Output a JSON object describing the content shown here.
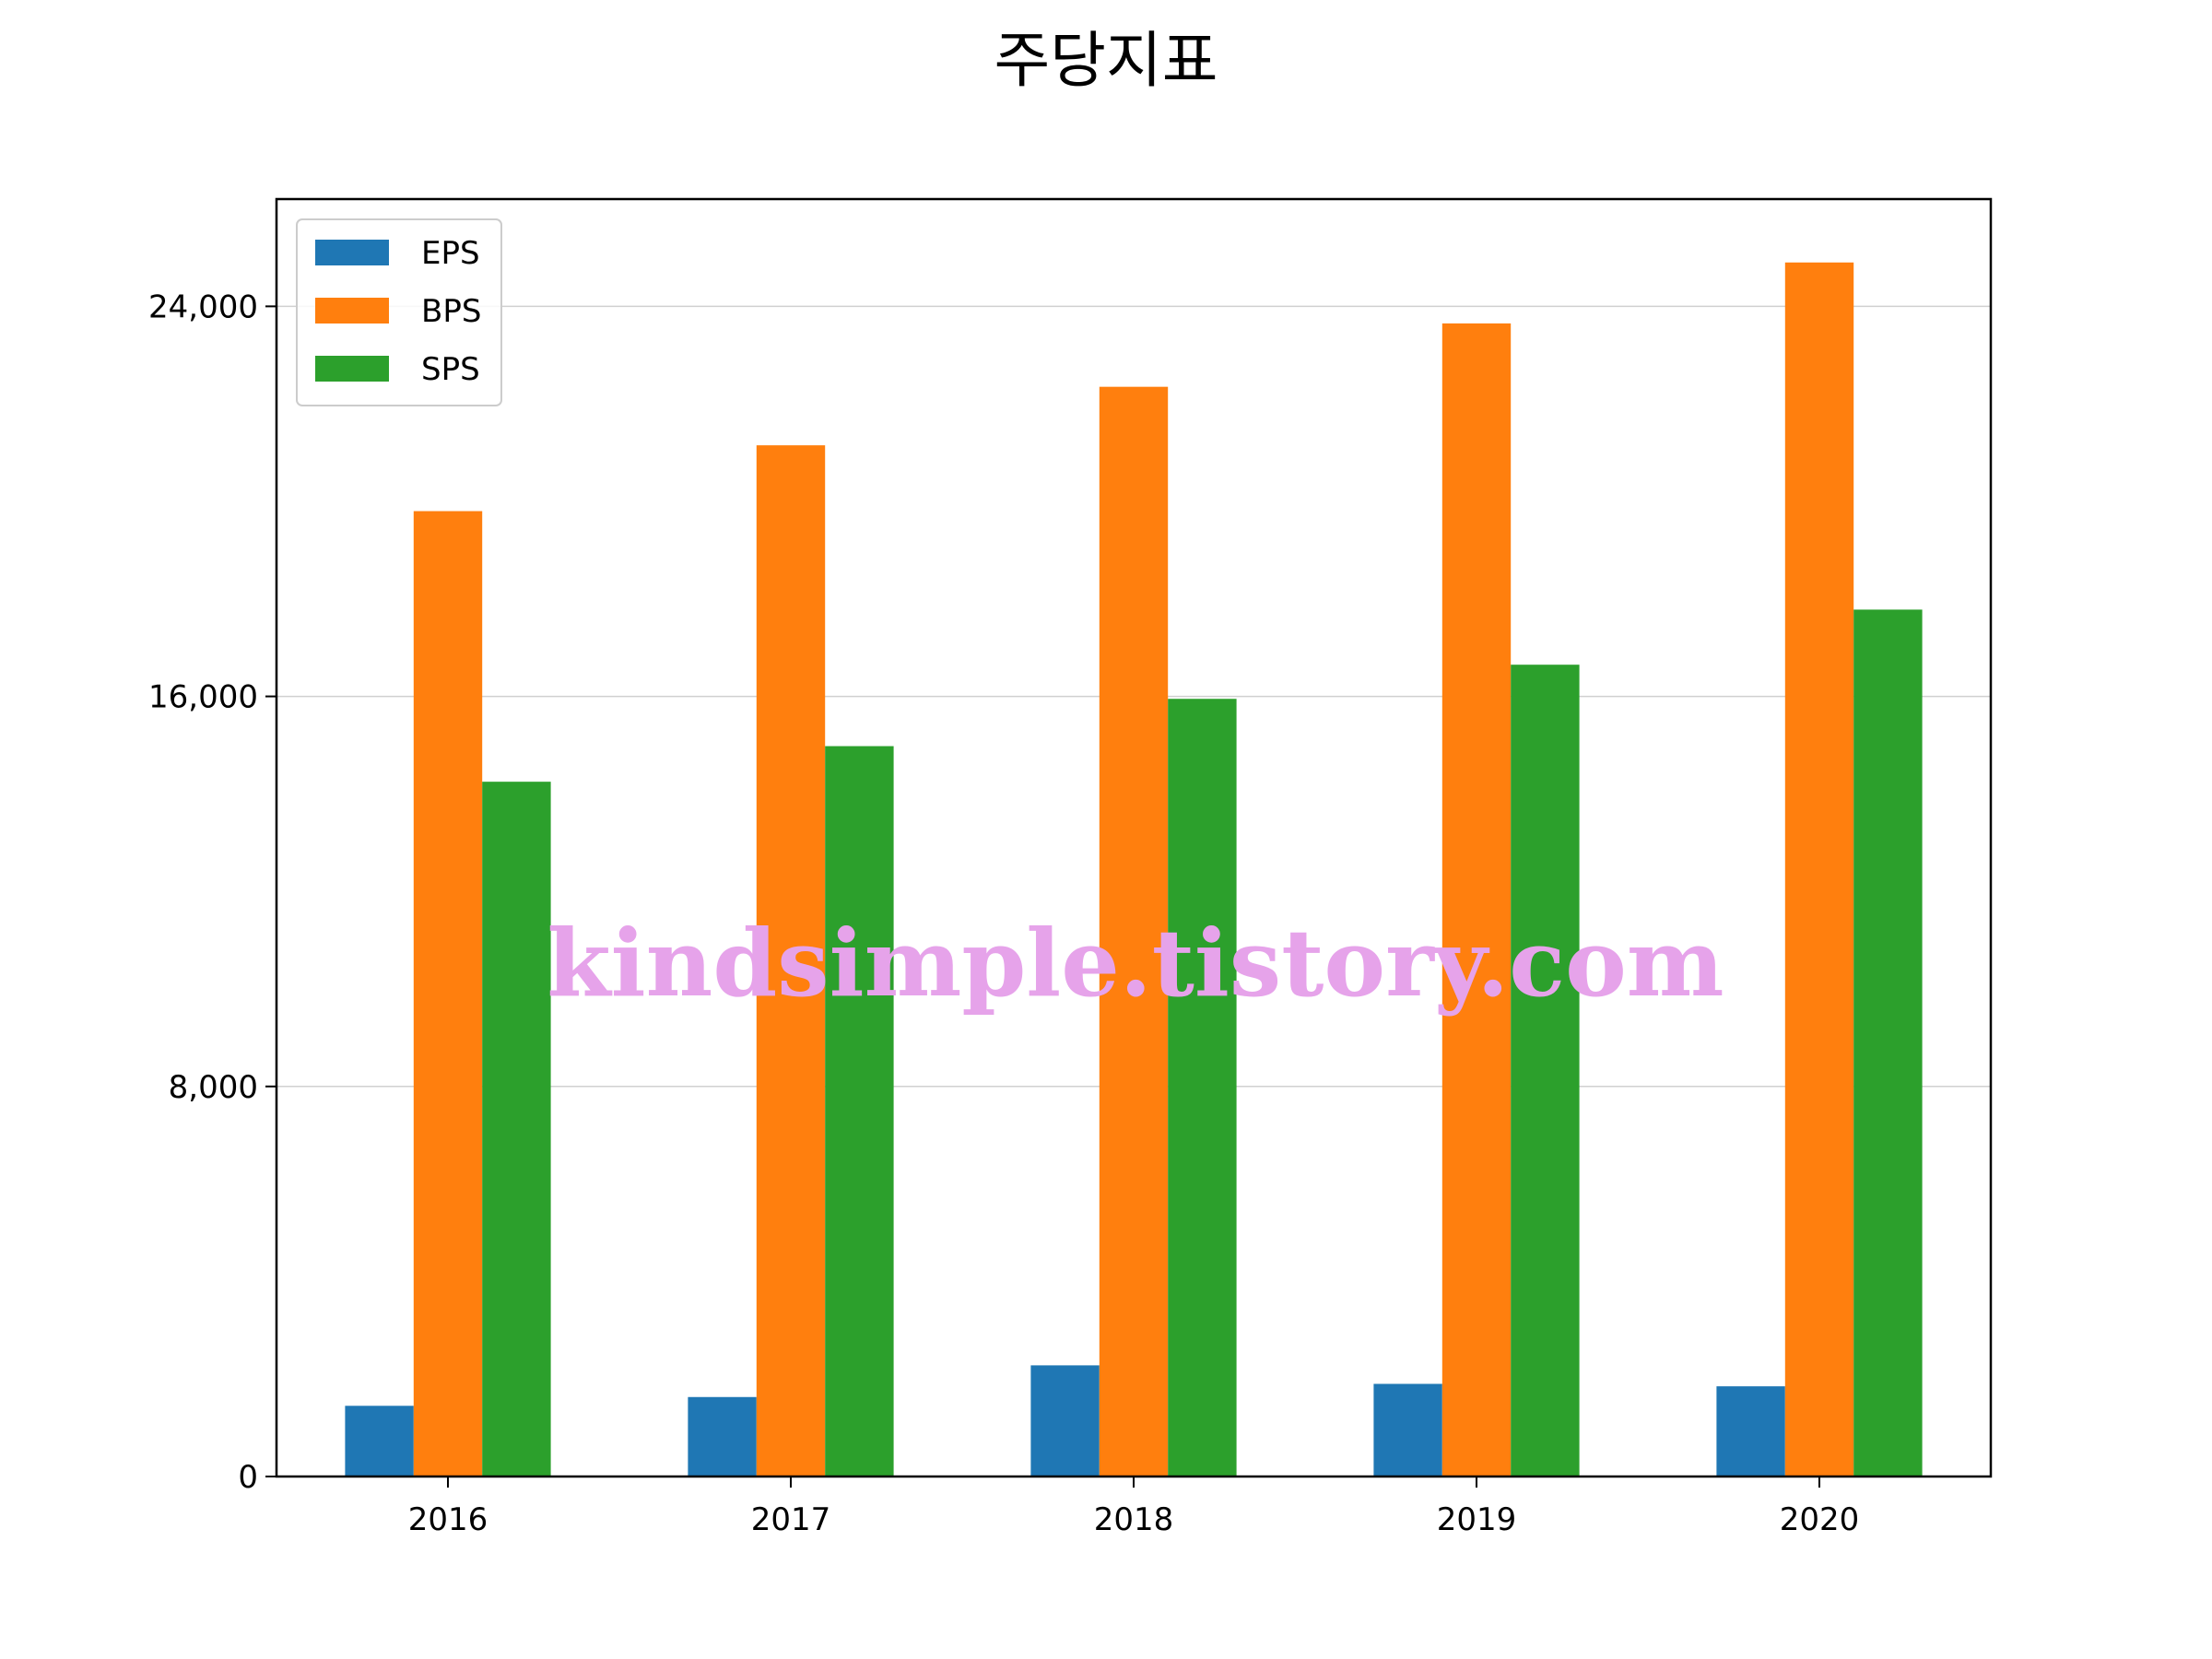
{
  "chart_data": {
    "type": "bar",
    "title": "주당지표",
    "xlabel": "",
    "ylabel": "",
    "categories": [
      "2016",
      "2017",
      "2018",
      "2019",
      "2020"
    ],
    "series": [
      {
        "name": "EPS",
        "color": "#1f77b4",
        "values": [
          1450,
          1630,
          2280,
          1900,
          1850
        ]
      },
      {
        "name": "BPS",
        "color": "#ff7f0e",
        "values": [
          19800,
          21150,
          22350,
          23650,
          24900
        ]
      },
      {
        "name": "SPS",
        "color": "#2ca02c",
        "values": [
          14250,
          14980,
          15950,
          16650,
          17780
        ]
      }
    ],
    "ylim": [
      0,
      26200
    ],
    "yticks": [
      0,
      8000,
      16000,
      24000
    ],
    "ytick_labels": [
      "0",
      "8,000",
      "16,000",
      "24,000"
    ],
    "grid": "horizontal",
    "legend_position": "top-left",
    "watermark": "kindsimple.tistory.com"
  }
}
